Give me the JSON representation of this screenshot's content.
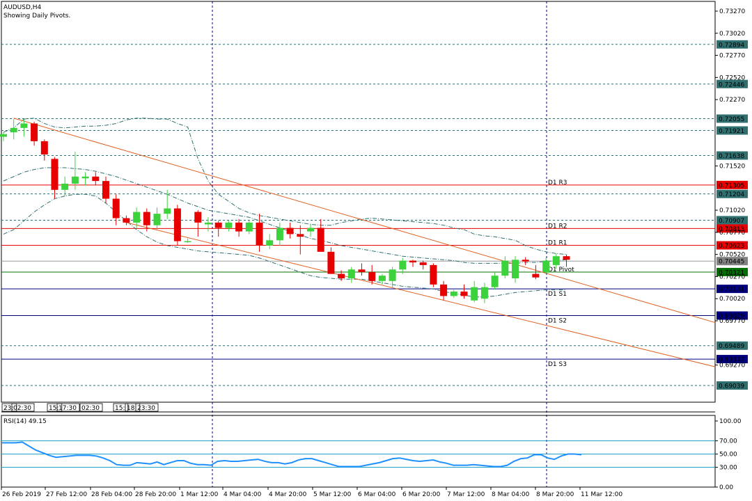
{
  "header": {
    "symbol": "AUDUSD,H4",
    "subtitle": "Showing Daily Pivots."
  },
  "colors": {
    "bull": "#3cd23c",
    "bear": "#e60000",
    "pivot_red": "#e60000",
    "pivot_green": "#007000",
    "pivot_blue": "#000080",
    "grid": "#000080",
    "band": "#2f6f6f",
    "channel": "#e06020",
    "rsi": "#1e90ff",
    "rsi_levels": "#1ea0c8"
  },
  "chart_data": [
    {
      "type": "candlestick",
      "title": "AUDUSD,H4",
      "ylim": [
        0.6885,
        0.7338
      ],
      "y_ticks": [
        "0.73270",
        "0.73020",
        "0.72770",
        "0.72520",
        "0.72270",
        "0.71520",
        "0.71020",
        "0.70770",
        "0.70520",
        "0.70270",
        "0.70020",
        "0.69770",
        "0.69270"
      ],
      "x_ticks": [
        "26 Feb 2019",
        "27 Feb 12:00",
        "28 Feb 04:00",
        "28 Feb 20:00",
        "1 Mar 12:00",
        "4 Mar 04:00",
        "4 Mar 20:00",
        "5 Mar 12:00",
        "6 Mar 04:00",
        "6 Mar 20:00",
        "7 Mar 12:00",
        "8 Mar 04:00",
        "8 Mar 20:00",
        "11 Mar 12:00"
      ],
      "session_labels": [
        "23:",
        "02:30",
        "15:",
        "17:30",
        "02:30",
        "15:",
        "18:",
        "23:30"
      ],
      "candles": [
        [
          0.7185,
          0.719,
          0.718,
          0.7188
        ],
        [
          0.719,
          0.7205,
          0.7182,
          0.7195
        ],
        [
          0.7195,
          0.7205,
          0.7185,
          0.72
        ],
        [
          0.72,
          0.7202,
          0.7175,
          0.718
        ],
        [
          0.718,
          0.7182,
          0.7158,
          0.7165
        ],
        [
          0.716,
          0.7162,
          0.7115,
          0.7125
        ],
        [
          0.7125,
          0.714,
          0.7118,
          0.7132
        ],
        [
          0.7132,
          0.7168,
          0.7125,
          0.714
        ],
        [
          0.7138,
          0.7145,
          0.713,
          0.714
        ],
        [
          0.714,
          0.7145,
          0.713,
          0.7135
        ],
        [
          0.7135,
          0.714,
          0.711,
          0.7115
        ],
        [
          0.7115,
          0.712,
          0.7085,
          0.7093
        ],
        [
          0.7093,
          0.7096,
          0.7085,
          0.7088
        ],
        [
          0.7088,
          0.7105,
          0.7082,
          0.71
        ],
        [
          0.71,
          0.7104,
          0.7078,
          0.7085
        ],
        [
          0.7085,
          0.7105,
          0.708,
          0.7098
        ],
        [
          0.7098,
          0.7125,
          0.7092,
          0.7104
        ],
        [
          0.7104,
          0.7108,
          0.7062,
          0.7067
        ],
        [
          0.7067,
          0.707,
          0.7065,
          0.7067
        ],
        [
          0.71,
          0.7102,
          0.7072,
          0.7088
        ],
        [
          0.7086,
          0.7094,
          0.7078,
          0.7088
        ],
        [
          0.7088,
          0.709,
          0.7072,
          0.7082
        ],
        [
          0.7082,
          0.709,
          0.7078,
          0.7088
        ],
        [
          0.7088,
          0.7092,
          0.7072,
          0.7078
        ],
        [
          0.7078,
          0.709,
          0.7075,
          0.7088
        ],
        [
          0.7088,
          0.7098,
          0.7055,
          0.7062
        ],
        [
          0.7062,
          0.7075,
          0.7058,
          0.7068
        ],
        [
          0.7068,
          0.7088,
          0.7062,
          0.7082
        ],
        [
          0.7082,
          0.7088,
          0.707,
          0.7075
        ],
        [
          0.7075,
          0.7085,
          0.7052,
          0.7072
        ],
        [
          0.7078,
          0.7086,
          0.7072,
          0.7082
        ],
        [
          0.7082,
          0.7092,
          0.7055,
          0.7055
        ],
        [
          0.7055,
          0.706,
          0.703,
          0.703
        ],
        [
          0.703,
          0.7034,
          0.7022,
          0.7025
        ],
        [
          0.7025,
          0.7038,
          0.702,
          0.7035
        ],
        [
          0.7035,
          0.7042,
          0.7028,
          0.7032
        ],
        [
          0.7032,
          0.704,
          0.7018,
          0.7022
        ],
        [
          0.7022,
          0.703,
          0.7018,
          0.7028
        ],
        [
          0.7022,
          0.7038,
          0.7015,
          0.7035
        ],
        [
          0.7035,
          0.7048,
          0.703,
          0.7045
        ],
        [
          0.7045,
          0.7046,
          0.7038,
          0.7043
        ],
        [
          0.7043,
          0.7045,
          0.7035,
          0.704
        ],
        [
          0.704,
          0.7042,
          0.7015,
          0.7018
        ],
        [
          0.7018,
          0.7022,
          0.7,
          0.7005
        ],
        [
          0.7005,
          0.7012,
          0.7003,
          0.701
        ],
        [
          0.701,
          0.7018,
          0.7002,
          0.7005
        ],
        [
          0.7,
          0.7022,
          0.6998,
          0.7015
        ],
        [
          0.7002,
          0.702,
          0.6997,
          0.7015
        ],
        [
          0.7015,
          0.7032,
          0.7012,
          0.7028
        ],
        [
          0.7028,
          0.705,
          0.7025,
          0.7045
        ],
        [
          0.7025,
          0.705,
          0.702,
          0.7046
        ],
        [
          0.7046,
          0.7049,
          0.704,
          0.7044
        ],
        [
          0.703,
          0.704,
          0.7024,
          0.7026
        ],
        [
          0.7032,
          0.7048,
          0.703,
          0.7045
        ],
        [
          0.704,
          0.7053,
          0.7036,
          0.705
        ],
        [
          0.705,
          0.7052,
          0.7038,
          0.7046
        ]
      ],
      "pivots": [
        {
          "name": "D1 R3",
          "label": "D1 R3",
          "value": 0.71305,
          "price_label": "0.71305",
          "color": "red"
        },
        {
          "name": "D1 R2",
          "label": "D1 R2",
          "value": 0.70813,
          "price_label": "0.70813",
          "color": "red"
        },
        {
          "name": "D1 R1",
          "label": "D1 R1",
          "value": 0.70623,
          "price_label": "0.70623",
          "color": "red"
        },
        {
          "name": "D1 Pivot",
          "label": "D1 Pivot",
          "value": 0.70321,
          "price_label": "0.70321",
          "color": "green"
        },
        {
          "name": "D1 S1",
          "label": "D1 S1",
          "value": 0.70131,
          "price_label": "0.70131",
          "color": "blue"
        },
        {
          "name": "D1 S2",
          "label": "D1 S2",
          "value": 0.69829,
          "price_label": "0.69829",
          "color": "blue"
        },
        {
          "name": "D1 S3",
          "label": "D1 S3",
          "value": 0.69337,
          "price_label": "0.69337",
          "color": "blue"
        }
      ],
      "extra_levels": [
        {
          "value": 0.72894,
          "price_label": "0.72894"
        },
        {
          "value": 0.72446,
          "price_label": "0.72446"
        },
        {
          "value": 0.72055,
          "price_label": "0.72055"
        },
        {
          "value": 0.71921,
          "price_label": "0.71921"
        },
        {
          "value": 0.71638,
          "price_label": "0.71638"
        },
        {
          "value": 0.71204,
          "price_label": "0.71204"
        },
        {
          "value": 0.70907,
          "price_label": "0.70907"
        },
        {
          "value": 0.69489,
          "price_label": "0.69489"
        },
        {
          "value": 0.69039,
          "price_label": "0.69039"
        }
      ],
      "current_price": {
        "value": 0.70445,
        "price_label": "0.70445"
      },
      "bollinger": {
        "upper": [
          0.719,
          0.7195,
          0.7205,
          0.7206,
          0.72,
          0.7196,
          0.7195,
          0.7196,
          0.7197,
          0.7197,
          0.7198,
          0.72,
          0.7204,
          0.7206,
          0.7206,
          0.7205,
          0.7205,
          0.72,
          0.7196,
          0.716,
          0.7135,
          0.712,
          0.7112,
          0.7104,
          0.7099,
          0.7096,
          0.7094,
          0.7092,
          0.709,
          0.7088,
          0.7086,
          0.7085,
          0.7085,
          0.7088,
          0.709,
          0.7092,
          0.7093,
          0.7092,
          0.7091,
          0.709,
          0.7089,
          0.7088,
          0.7087,
          0.7085,
          0.7082,
          0.708,
          0.7075,
          0.7073,
          0.7072,
          0.707,
          0.7068,
          0.7062,
          0.7058,
          0.7055,
          0.7053,
          0.7052
        ],
        "middle": [
          0.7135,
          0.714,
          0.7145,
          0.7148,
          0.715,
          0.715,
          0.715,
          0.7149,
          0.7148,
          0.7146,
          0.7143,
          0.714,
          0.7136,
          0.7132,
          0.7128,
          0.7124,
          0.712,
          0.7115,
          0.711,
          0.7106,
          0.7102,
          0.71,
          0.7098,
          0.7096,
          0.7094,
          0.709,
          0.7086,
          0.7082,
          0.7078,
          0.7074,
          0.707,
          0.7068,
          0.7065,
          0.7062,
          0.706,
          0.7058,
          0.7056,
          0.7054,
          0.7052,
          0.705,
          0.7049,
          0.7048,
          0.7047,
          0.7046,
          0.7045,
          0.7043,
          0.7042,
          0.7042,
          0.7042,
          0.7042,
          0.7042,
          0.7043,
          0.7043,
          0.7044,
          0.7045,
          0.7046
        ],
        "lower": [
          0.7075,
          0.708,
          0.709,
          0.71,
          0.7108,
          0.7115,
          0.7118,
          0.712,
          0.712,
          0.7118,
          0.711,
          0.71,
          0.709,
          0.708,
          0.7072,
          0.7066,
          0.7062,
          0.706,
          0.7058,
          0.7056,
          0.7055,
          0.7054,
          0.7053,
          0.7052,
          0.7051,
          0.7048,
          0.7044,
          0.704,
          0.7036,
          0.7032,
          0.7028,
          0.7026,
          0.7025,
          0.7024,
          0.7024,
          0.7024,
          0.7022,
          0.702,
          0.7018,
          0.7016,
          0.7015,
          0.7014,
          0.7013,
          0.701,
          0.7008,
          0.7006,
          0.7004,
          0.7004,
          0.7005,
          0.7007,
          0.7009,
          0.701,
          0.7011,
          0.7012,
          0.7012,
          0.7012
        ]
      },
      "channel": {
        "upper": [
          [
            0.7206,
            0
          ],
          [
            0.6975,
            68
          ]
        ],
        "lower": [
          [
            0.7088,
            11
          ],
          [
            0.6925,
            65
          ]
        ]
      }
    },
    {
      "type": "line",
      "title": "RSI(14) 49.15",
      "ylim": [
        0,
        100
      ],
      "y_ticks": [
        "100.00",
        "70.00",
        "50.00",
        "30.00",
        "0.00"
      ],
      "levels": [
        70,
        50,
        30
      ],
      "series": [
        {
          "values": [
            67,
            67,
            67,
            68,
            62,
            56,
            52,
            48,
            45,
            46,
            47,
            48,
            48,
            48,
            47,
            44,
            40,
            34,
            33,
            33,
            37,
            36,
            35,
            38,
            34,
            37,
            40,
            40,
            36,
            34,
            34,
            33,
            39,
            40,
            39,
            39,
            40,
            41,
            42,
            39,
            37,
            37,
            35,
            37,
            41,
            43,
            43,
            40,
            37,
            34,
            31,
            31,
            31,
            31,
            33,
            35,
            37,
            40,
            43,
            44,
            42,
            40,
            39,
            40,
            41,
            38,
            36,
            33,
            33,
            33,
            34,
            33,
            32,
            31,
            31,
            33,
            39,
            43,
            44,
            49,
            49,
            44,
            42,
            47,
            50,
            50,
            49
          ]
        }
      ]
    }
  ]
}
